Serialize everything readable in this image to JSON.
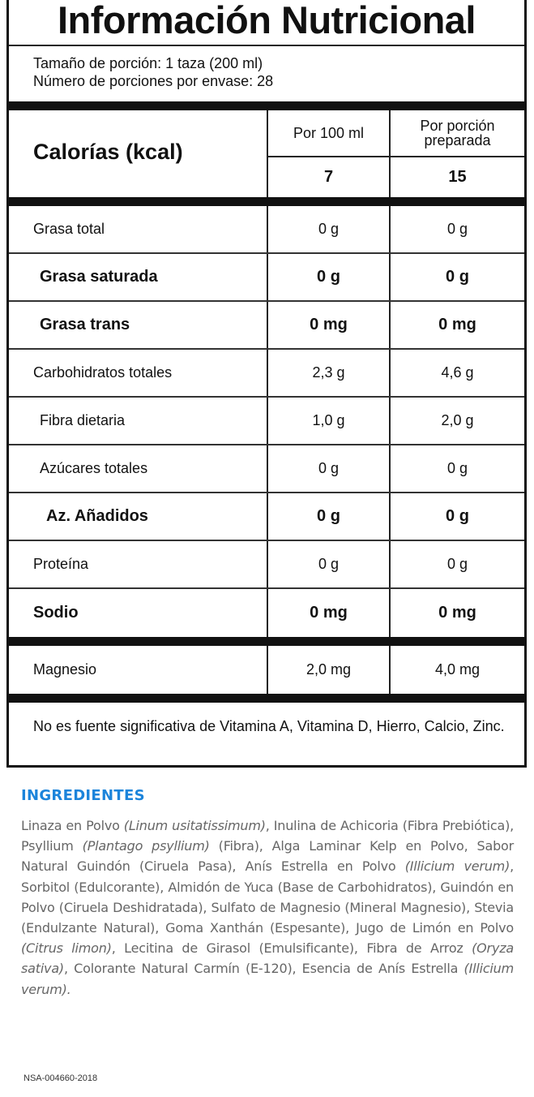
{
  "label": {
    "title": "Información Nutricional",
    "serving_size": "Tamaño de porción: 1 taza (200 ml)",
    "servings_per_container": "Número de porciones por envase: 28",
    "calories_label": "Calorías (kcal)",
    "col1_header": "Por 100 ml",
    "col2_header": "Por porción preparada",
    "calories_col1": "7",
    "calories_col2": "15",
    "rows": [
      {
        "label": "Grasa total",
        "v1": "0 g",
        "v2": "0 g",
        "bold": false,
        "indent": 0
      },
      {
        "label": "Grasa saturada",
        "v1": "0 g",
        "v2": "0 g",
        "bold": true,
        "indent": 1
      },
      {
        "label": "Grasa trans",
        "v1": "0 mg",
        "v2": "0 mg",
        "bold": true,
        "indent": 1
      },
      {
        "label": "Carbohidratos totales",
        "v1": "2,3 g",
        "v2": "4,6 g",
        "bold": false,
        "indent": 0
      },
      {
        "label": "Fibra dietaria",
        "v1": "1,0 g",
        "v2": "2,0 g",
        "bold": false,
        "indent": 1
      },
      {
        "label": "Azúcares totales",
        "v1": "0 g",
        "v2": "0 g",
        "bold": false,
        "indent": 1
      },
      {
        "label": "Az. Añadidos",
        "v1": "0 g",
        "v2": "0 g",
        "bold": true,
        "indent": 2
      },
      {
        "label": "Proteína",
        "v1": "0 g",
        "v2": "0 g",
        "bold": false,
        "indent": 0
      },
      {
        "label": "Sodio",
        "v1": "0 mg",
        "v2": "0 mg",
        "bold": true,
        "indent": 0
      }
    ],
    "minerals": [
      {
        "label": "Magnesio",
        "v1": "2,0 mg",
        "v2": "4,0 mg",
        "bold": false,
        "indent": 0
      }
    ],
    "footnote": "No es fuente significativa de Vitamina A, Vitamina D, Hierro, Calcio, Zinc."
  },
  "ingredients": {
    "heading": "INGREDIENTES",
    "accent_color": "#1c84db",
    "segments": [
      {
        "text": "Linaza en Polvo ",
        "italic": false
      },
      {
        "text": "(Linum usitatissimum)",
        "italic": true
      },
      {
        "text": ", Inulina de Achicoria (Fibra Prebiótica), Psyllium ",
        "italic": false
      },
      {
        "text": "(Plantago psyllium)",
        "italic": true
      },
      {
        "text": " (Fibra), Alga Laminar Kelp en Polvo, Sabor Natural Guindón (Ciruela Pasa), Anís Estrella en Polvo ",
        "italic": false
      },
      {
        "text": "(Illicium verum)",
        "italic": true
      },
      {
        "text": ", Sorbitol (Edulcorante), Almidón de Yuca (Base de Carbohidratos), Guindón en Polvo (Ciruela Deshidratada), Sulfato de Magnesio (Mineral Magnesio), Stevia (Endulzante Natural), Goma Xanthán (Espesante), Jugo de Limón en Polvo ",
        "italic": false
      },
      {
        "text": "(Citrus limon)",
        "italic": true
      },
      {
        "text": ", Lecitina de Girasol (Emulsificante), Fibra de Arroz ",
        "italic": false
      },
      {
        "text": "(Oryza sativa)",
        "italic": true
      },
      {
        "text": ", Colorante Natural Carmín (E-120), Esencia de Anís Estrella ",
        "italic": false
      },
      {
        "text": "(Illicium verum).",
        "italic": true
      }
    ]
  },
  "registration": "NSA-004660-2018"
}
